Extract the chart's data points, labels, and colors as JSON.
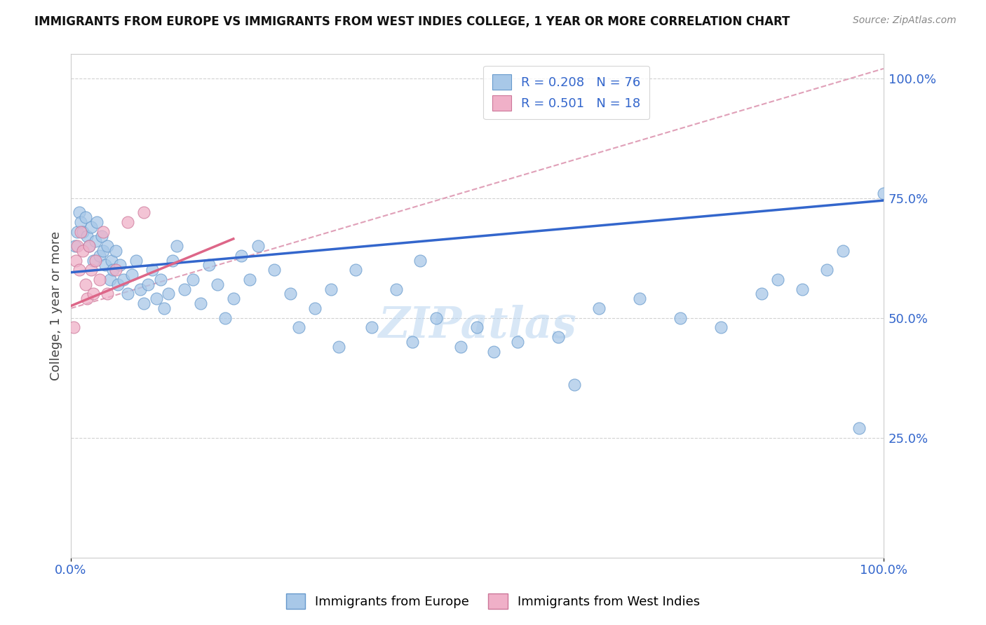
{
  "title": "IMMIGRANTS FROM EUROPE VS IMMIGRANTS FROM WEST INDIES COLLEGE, 1 YEAR OR MORE CORRELATION CHART",
  "source_text": "Source: ZipAtlas.com",
  "ylabel": "College, 1 year or more",
  "xmin": 0.0,
  "xmax": 1.0,
  "ymin": 0.0,
  "ymax": 1.05,
  "watermark": "ZIPatlas",
  "blue_R": 0.208,
  "blue_N": 76,
  "pink_R": 0.501,
  "pink_N": 18,
  "blue_scatter_color": "#a8c8e8",
  "blue_edge_color": "#6699cc",
  "pink_scatter_color": "#f0b0c8",
  "pink_edge_color": "#cc7799",
  "blue_line_color": "#3366cc",
  "pink_line_color": "#dd6688",
  "dashed_line_color": "#e0a0b8",
  "legend_blue_fill": "#a8c8e8",
  "legend_pink_fill": "#f0b0c8",
  "tick_color": "#3366cc",
  "ylabel_color": "#444444",
  "grid_color": "#cccccc",
  "blue_points_x": [
    0.005,
    0.008,
    0.01,
    0.012,
    0.015,
    0.018,
    0.02,
    0.022,
    0.025,
    0.028,
    0.03,
    0.032,
    0.035,
    0.038,
    0.04,
    0.042,
    0.045,
    0.048,
    0.05,
    0.052,
    0.055,
    0.058,
    0.06,
    0.065,
    0.07,
    0.075,
    0.08,
    0.085,
    0.09,
    0.095,
    0.1,
    0.105,
    0.11,
    0.115,
    0.12,
    0.125,
    0.13,
    0.14,
    0.15,
    0.16,
    0.17,
    0.18,
    0.19,
    0.2,
    0.21,
    0.22,
    0.23,
    0.25,
    0.27,
    0.28,
    0.3,
    0.32,
    0.33,
    0.35,
    0.37,
    0.4,
    0.42,
    0.43,
    0.45,
    0.48,
    0.5,
    0.52,
    0.55,
    0.6,
    0.62,
    0.65,
    0.7,
    0.75,
    0.8,
    0.85,
    0.87,
    0.9,
    0.93,
    0.95,
    0.97,
    1.0
  ],
  "blue_points_y": [
    0.65,
    0.68,
    0.72,
    0.7,
    0.68,
    0.71,
    0.67,
    0.65,
    0.69,
    0.62,
    0.66,
    0.7,
    0.63,
    0.67,
    0.64,
    0.61,
    0.65,
    0.58,
    0.62,
    0.6,
    0.64,
    0.57,
    0.61,
    0.58,
    0.55,
    0.59,
    0.62,
    0.56,
    0.53,
    0.57,
    0.6,
    0.54,
    0.58,
    0.52,
    0.55,
    0.62,
    0.65,
    0.56,
    0.58,
    0.53,
    0.61,
    0.57,
    0.5,
    0.54,
    0.63,
    0.58,
    0.65,
    0.6,
    0.55,
    0.48,
    0.52,
    0.56,
    0.44,
    0.6,
    0.48,
    0.56,
    0.45,
    0.62,
    0.5,
    0.44,
    0.48,
    0.43,
    0.45,
    0.46,
    0.36,
    0.52,
    0.54,
    0.5,
    0.48,
    0.55,
    0.58,
    0.56,
    0.6,
    0.64,
    0.27,
    0.76
  ],
  "pink_points_x": [
    0.003,
    0.006,
    0.008,
    0.01,
    0.012,
    0.015,
    0.018,
    0.02,
    0.022,
    0.025,
    0.028,
    0.03,
    0.035,
    0.04,
    0.045,
    0.055,
    0.07,
    0.09
  ],
  "pink_points_y": [
    0.48,
    0.62,
    0.65,
    0.6,
    0.68,
    0.64,
    0.57,
    0.54,
    0.65,
    0.6,
    0.55,
    0.62,
    0.58,
    0.68,
    0.55,
    0.6,
    0.7,
    0.72
  ],
  "blue_line_x": [
    0.0,
    1.0
  ],
  "blue_line_y": [
    0.595,
    0.745
  ],
  "pink_line_x": [
    0.0,
    0.2
  ],
  "pink_line_y": [
    0.525,
    0.665
  ],
  "dashed_line_x": [
    0.0,
    1.0
  ],
  "dashed_line_y": [
    0.52,
    1.02
  ]
}
